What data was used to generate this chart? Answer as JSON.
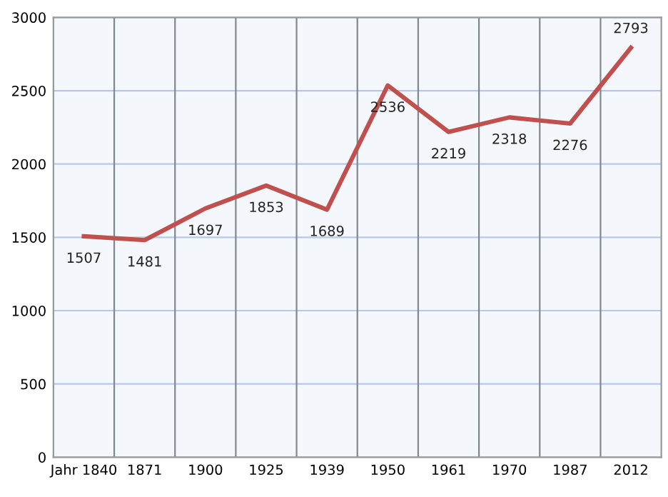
{
  "chart_data": {
    "type": "line",
    "categories": [
      "Jahr 1840",
      "1871",
      "1900",
      "1925",
      "1939",
      "1950",
      "1961",
      "1970",
      "1987",
      "2012"
    ],
    "series": [
      {
        "color": "#c0504d",
        "values": [
          1507,
          1481,
          1697,
          1853,
          1689,
          2536,
          2219,
          2318,
          2276,
          2793
        ]
      }
    ],
    "ylim": [
      0,
      3000
    ],
    "yticks": [
      0,
      500,
      1000,
      1500,
      2000,
      2500,
      3000
    ],
    "grid": true,
    "data_labels": true,
    "marker": "none",
    "line_style": "solid",
    "legend": false
  }
}
